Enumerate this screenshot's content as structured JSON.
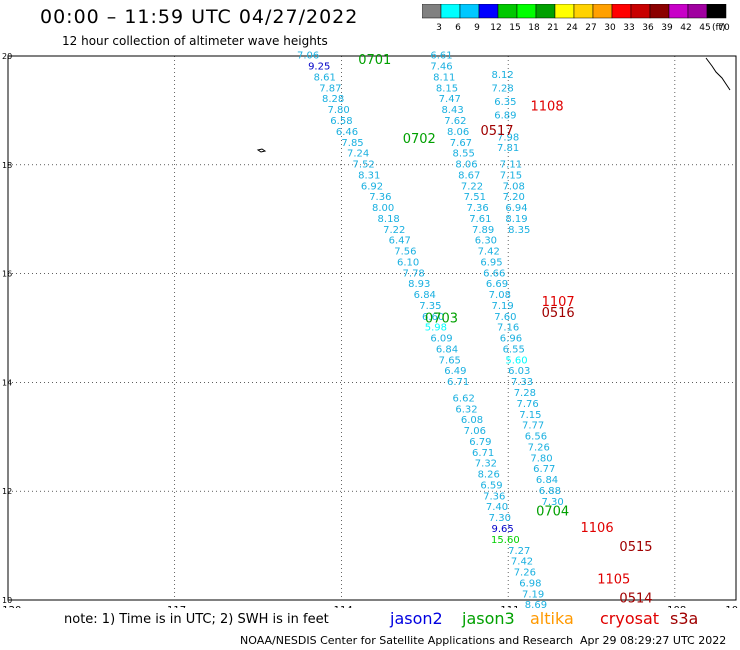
{
  "header": {
    "title": "00:00 – 11:59 UTC 04/27/2022",
    "subtitle": "12 hour collection of altimeter wave heights"
  },
  "colorbar": {
    "unit_label": "(ft)",
    "labels": [
      "3",
      "6",
      "9",
      "12",
      "15",
      "18",
      "21",
      "24",
      "27",
      "30",
      "33",
      "36",
      "39",
      "42",
      "45",
      "70"
    ],
    "colors": [
      "#808080",
      "#00ffff",
      "#00c8ff",
      "#0000ff",
      "#00c800",
      "#00ff00",
      "#00a000",
      "#ffff00",
      "#ffd200",
      "#ffa000",
      "#ff0000",
      "#c80000",
      "#8b0000",
      "#c800c8",
      "#a000a0",
      "#000000"
    ]
  },
  "axes": {
    "x_ticks": [
      "-120",
      "-117",
      "-114",
      "-111",
      "-108",
      "-10"
    ],
    "y_ticks": [
      "20",
      "18",
      "16",
      "14",
      "12",
      "10"
    ]
  },
  "tracks": [
    {
      "name": "0701",
      "satellite": "jason3",
      "color": "#00a000"
    },
    {
      "name": "0702",
      "satellite": "jason3",
      "color": "#00a000"
    },
    {
      "name": "0703",
      "satellite": "jason3",
      "color": "#00a000"
    },
    {
      "name": "0704",
      "satellite": "jason3",
      "color": "#00a000"
    },
    {
      "name": "1108",
      "satellite": "cryosat",
      "color": "#e00000"
    },
    {
      "name": "1107",
      "satellite": "cryosat",
      "color": "#e00000"
    },
    {
      "name": "1106",
      "satellite": "cryosat",
      "color": "#e00000"
    },
    {
      "name": "1105",
      "satellite": "cryosat",
      "color": "#e00000"
    },
    {
      "name": "0517",
      "satellite": "s3a",
      "color": "#a00000"
    },
    {
      "name": "0516",
      "satellite": "s3a",
      "color": "#a00000"
    },
    {
      "name": "0515",
      "satellite": "s3a",
      "color": "#a00000"
    },
    {
      "name": "0514",
      "satellite": "s3a",
      "color": "#a00000"
    }
  ],
  "observations": [
    {
      "lon": -114.6,
      "lat": 19.95,
      "swh": "7.06"
    },
    {
      "lon": -114.4,
      "lat": 19.75,
      "swh": "9.25"
    },
    {
      "lon": -114.3,
      "lat": 19.55,
      "swh": "8.61"
    },
    {
      "lon": -114.2,
      "lat": 19.35,
      "swh": "7.87"
    },
    {
      "lon": -114.15,
      "lat": 19.15,
      "swh": "8.28"
    },
    {
      "lon": -114.05,
      "lat": 18.95,
      "swh": "7.80"
    },
    {
      "lon": -114.0,
      "lat": 18.75,
      "swh": "6.58"
    },
    {
      "lon": -113.9,
      "lat": 18.55,
      "swh": "6.46"
    },
    {
      "lon": -113.8,
      "lat": 18.35,
      "swh": "7.85"
    },
    {
      "lon": -113.7,
      "lat": 18.15,
      "swh": "7.24"
    },
    {
      "lon": -113.6,
      "lat": 17.95,
      "swh": "7.52"
    },
    {
      "lon": -113.5,
      "lat": 17.75,
      "swh": "8.31"
    },
    {
      "lon": -113.45,
      "lat": 17.55,
      "swh": "6.92"
    },
    {
      "lon": -113.3,
      "lat": 17.35,
      "swh": "7.36"
    },
    {
      "lon": -113.25,
      "lat": 17.15,
      "swh": "8.00"
    },
    {
      "lon": -113.15,
      "lat": 16.95,
      "swh": "8.18"
    },
    {
      "lon": -113.05,
      "lat": 16.75,
      "swh": "7.22"
    },
    {
      "lon": -112.95,
      "lat": 16.55,
      "swh": "6.47"
    },
    {
      "lon": -112.85,
      "lat": 16.35,
      "swh": "7.56"
    },
    {
      "lon": -112.8,
      "lat": 16.15,
      "swh": "6.10"
    },
    {
      "lon": -112.7,
      "lat": 15.95,
      "swh": "7.78"
    },
    {
      "lon": -112.6,
      "lat": 15.75,
      "swh": "8.93"
    },
    {
      "lon": -112.5,
      "lat": 15.55,
      "swh": "6.84"
    },
    {
      "lon": -112.4,
      "lat": 15.35,
      "swh": "7.35"
    },
    {
      "lon": -112.35,
      "lat": 15.15,
      "swh": "6.60"
    },
    {
      "lon": -112.3,
      "lat": 14.95,
      "swh": "5.98"
    },
    {
      "lon": -112.2,
      "lat": 14.75,
      "swh": "6.09"
    },
    {
      "lon": -112.1,
      "lat": 14.55,
      "swh": "6.84"
    },
    {
      "lon": -112.05,
      "lat": 14.35,
      "swh": "7.65"
    },
    {
      "lon": -111.95,
      "lat": 14.15,
      "swh": "6.49"
    },
    {
      "lon": -111.9,
      "lat": 13.95,
      "swh": "6.71"
    },
    {
      "lon": -111.8,
      "lat": 13.65,
      "swh": "6.62"
    },
    {
      "lon": -111.75,
      "lat": 13.45,
      "swh": "6.32"
    },
    {
      "lon": -111.65,
      "lat": 13.25,
      "swh": "6.08"
    },
    {
      "lon": -111.6,
      "lat": 13.05,
      "swh": "7.06"
    },
    {
      "lon": -111.5,
      "lat": 12.85,
      "swh": "6.79"
    },
    {
      "lon": -111.45,
      "lat": 12.65,
      "swh": "6.71"
    },
    {
      "lon": -111.4,
      "lat": 12.45,
      "swh": "7.32"
    },
    {
      "lon": -111.35,
      "lat": 12.25,
      "swh": "8.26"
    },
    {
      "lon": -111.3,
      "lat": 12.05,
      "swh": "6.59"
    },
    {
      "lon": -111.25,
      "lat": 11.85,
      "swh": "7.36"
    },
    {
      "lon": -111.2,
      "lat": 11.65,
      "swh": "7.40"
    },
    {
      "lon": -111.15,
      "lat": 11.45,
      "swh": "7.30"
    },
    {
      "lon": -111.1,
      "lat": 11.25,
      "swh": "9.65"
    },
    {
      "lon": -111.05,
      "lat": 11.05,
      "swh": "15.60"
    },
    {
      "lon": -110.8,
      "lat": 10.85,
      "swh": "7.27"
    },
    {
      "lon": -110.75,
      "lat": 10.65,
      "swh": "7.42"
    },
    {
      "lon": -110.7,
      "lat": 10.45,
      "swh": "7.26"
    },
    {
      "lon": -110.6,
      "lat": 10.25,
      "swh": "6.98"
    },
    {
      "lon": -110.55,
      "lat": 10.05,
      "swh": "7.19"
    },
    {
      "lon": -110.5,
      "lat": 9.85,
      "swh": "8.69"
    },
    {
      "lon": -112.2,
      "lat": 19.95,
      "swh": "6.61"
    },
    {
      "lon": -112.2,
      "lat": 19.75,
      "swh": "7.46"
    },
    {
      "lon": -112.15,
      "lat": 19.55,
      "swh": "8.11"
    },
    {
      "lon": -112.1,
      "lat": 19.35,
      "swh": "8.15"
    },
    {
      "lon": -112.05,
      "lat": 19.15,
      "swh": "7.47"
    },
    {
      "lon": -112.0,
      "lat": 18.95,
      "swh": "8.43"
    },
    {
      "lon": -111.95,
      "lat": 18.75,
      "swh": "7.62"
    },
    {
      "lon": -111.9,
      "lat": 18.55,
      "swh": "8.06"
    },
    {
      "lon": -111.85,
      "lat": 18.35,
      "swh": "7.67"
    },
    {
      "lon": -111.8,
      "lat": 18.15,
      "swh": "8.55"
    },
    {
      "lon": -111.75,
      "lat": 17.95,
      "swh": "8.06"
    },
    {
      "lon": -111.7,
      "lat": 17.75,
      "swh": "8.67"
    },
    {
      "lon": -111.65,
      "lat": 17.55,
      "swh": "7.22"
    },
    {
      "lon": -111.6,
      "lat": 17.35,
      "swh": "7.51"
    },
    {
      "lon": -111.55,
      "lat": 17.15,
      "swh": "7.36"
    },
    {
      "lon": -111.5,
      "lat": 16.95,
      "swh": "7.61"
    },
    {
      "lon": -111.45,
      "lat": 16.75,
      "swh": "7.89"
    },
    {
      "lon": -111.4,
      "lat": 16.55,
      "swh": "6.30"
    },
    {
      "lon": -111.35,
      "lat": 16.35,
      "swh": "7.42"
    },
    {
      "lon": -111.3,
      "lat": 16.15,
      "swh": "6.95"
    },
    {
      "lon": -111.25,
      "lat": 15.95,
      "swh": "6.66"
    },
    {
      "lon": -111.2,
      "lat": 15.75,
      "swh": "6.69"
    },
    {
      "lon": -111.15,
      "lat": 15.55,
      "swh": "7.08"
    },
    {
      "lon": -111.1,
      "lat": 15.35,
      "swh": "7.19"
    },
    {
      "lon": -111.05,
      "lat": 15.15,
      "swh": "7.60"
    },
    {
      "lon": -111.0,
      "lat": 14.95,
      "swh": "7.16"
    },
    {
      "lon": -110.95,
      "lat": 14.75,
      "swh": "6.96"
    },
    {
      "lon": -110.9,
      "lat": 14.55,
      "swh": "6.55"
    },
    {
      "lon": -110.85,
      "lat": 14.35,
      "swh": "5.60"
    },
    {
      "lon": -110.8,
      "lat": 14.15,
      "swh": "6.03"
    },
    {
      "lon": -110.75,
      "lat": 13.95,
      "swh": "7.33"
    },
    {
      "lon": -110.7,
      "lat": 13.75,
      "swh": "7.28"
    },
    {
      "lon": -110.65,
      "lat": 13.55,
      "swh": "7.76"
    },
    {
      "lon": -110.6,
      "lat": 13.35,
      "swh": "7.15"
    },
    {
      "lon": -110.55,
      "lat": 13.15,
      "swh": "7.77"
    },
    {
      "lon": -110.5,
      "lat": 12.95,
      "swh": "6.56"
    },
    {
      "lon": -110.45,
      "lat": 12.75,
      "swh": "7.26"
    },
    {
      "lon": -110.4,
      "lat": 12.55,
      "swh": "7.80"
    },
    {
      "lon": -110.35,
      "lat": 12.35,
      "swh": "6.77"
    },
    {
      "lon": -110.3,
      "lat": 12.15,
      "swh": "6.84"
    },
    {
      "lon": -110.25,
      "lat": 11.95,
      "swh": "6.88"
    },
    {
      "lon": -110.2,
      "lat": 11.75,
      "swh": "7.30"
    },
    {
      "lon": -111.1,
      "lat": 19.6,
      "swh": "8.12"
    },
    {
      "lon": -111.1,
      "lat": 19.35,
      "swh": "7.28"
    },
    {
      "lon": -111.05,
      "lat": 19.1,
      "swh": "6.35"
    },
    {
      "lon": -111.05,
      "lat": 18.85,
      "swh": "6.89"
    },
    {
      "lon": -111.0,
      "lat": 18.45,
      "swh": "7.98"
    },
    {
      "lon": -111.0,
      "lat": 18.25,
      "swh": "7.81"
    },
    {
      "lon": -110.95,
      "lat": 17.95,
      "swh": "7.11"
    },
    {
      "lon": -110.95,
      "lat": 17.75,
      "swh": "7.15"
    },
    {
      "lon": -110.9,
      "lat": 17.55,
      "swh": "7.08"
    },
    {
      "lon": -110.9,
      "lat": 17.35,
      "swh": "7.20"
    },
    {
      "lon": -110.85,
      "lat": 17.15,
      "swh": "6.94"
    },
    {
      "lon": -110.85,
      "lat": 16.95,
      "swh": "8.19"
    },
    {
      "lon": -110.8,
      "lat": 16.75,
      "swh": "8.35"
    }
  ],
  "labels": [
    {
      "track": "0701",
      "lon": -113.4,
      "lat": 19.85
    },
    {
      "track": "0702",
      "lon": -112.6,
      "lat": 18.4
    },
    {
      "track": "0703",
      "lon": -112.2,
      "lat": 15.1
    },
    {
      "track": "0704",
      "lon": -110.2,
      "lat": 11.55
    },
    {
      "track": "1108",
      "lon": -110.3,
      "lat": 19.0
    },
    {
      "track": "1107",
      "lon": -110.1,
      "lat": 15.4
    },
    {
      "track": "1106",
      "lon": -109.4,
      "lat": 11.25
    },
    {
      "track": "1105",
      "lon": -109.1,
      "lat": 10.3
    },
    {
      "track": "0517",
      "lon": -111.2,
      "lat": 18.55
    },
    {
      "track": "0516",
      "lon": -110.1,
      "lat": 15.2
    },
    {
      "track": "0515",
      "lon": -108.7,
      "lat": 10.9
    },
    {
      "track": "0514",
      "lon": -108.7,
      "lat": 9.95
    }
  ],
  "legend": {
    "note": "note: 1) Time is in UTC; 2) SWH is in feet",
    "items": [
      {
        "label": "jason2",
        "color": "#0000e0"
      },
      {
        "label": "jason3",
        "color": "#00a000"
      },
      {
        "label": "altika",
        "color": "#ff9900"
      },
      {
        "label": "cryosat",
        "color": "#e00000"
      },
      {
        "label": "s3a",
        "color": "#a00000"
      }
    ]
  },
  "footer": {
    "credit": "NOAA/NESDIS Center for Satellite Applications and Research",
    "timestamp": "Apr 29 08:29:27 UTC 2022"
  }
}
